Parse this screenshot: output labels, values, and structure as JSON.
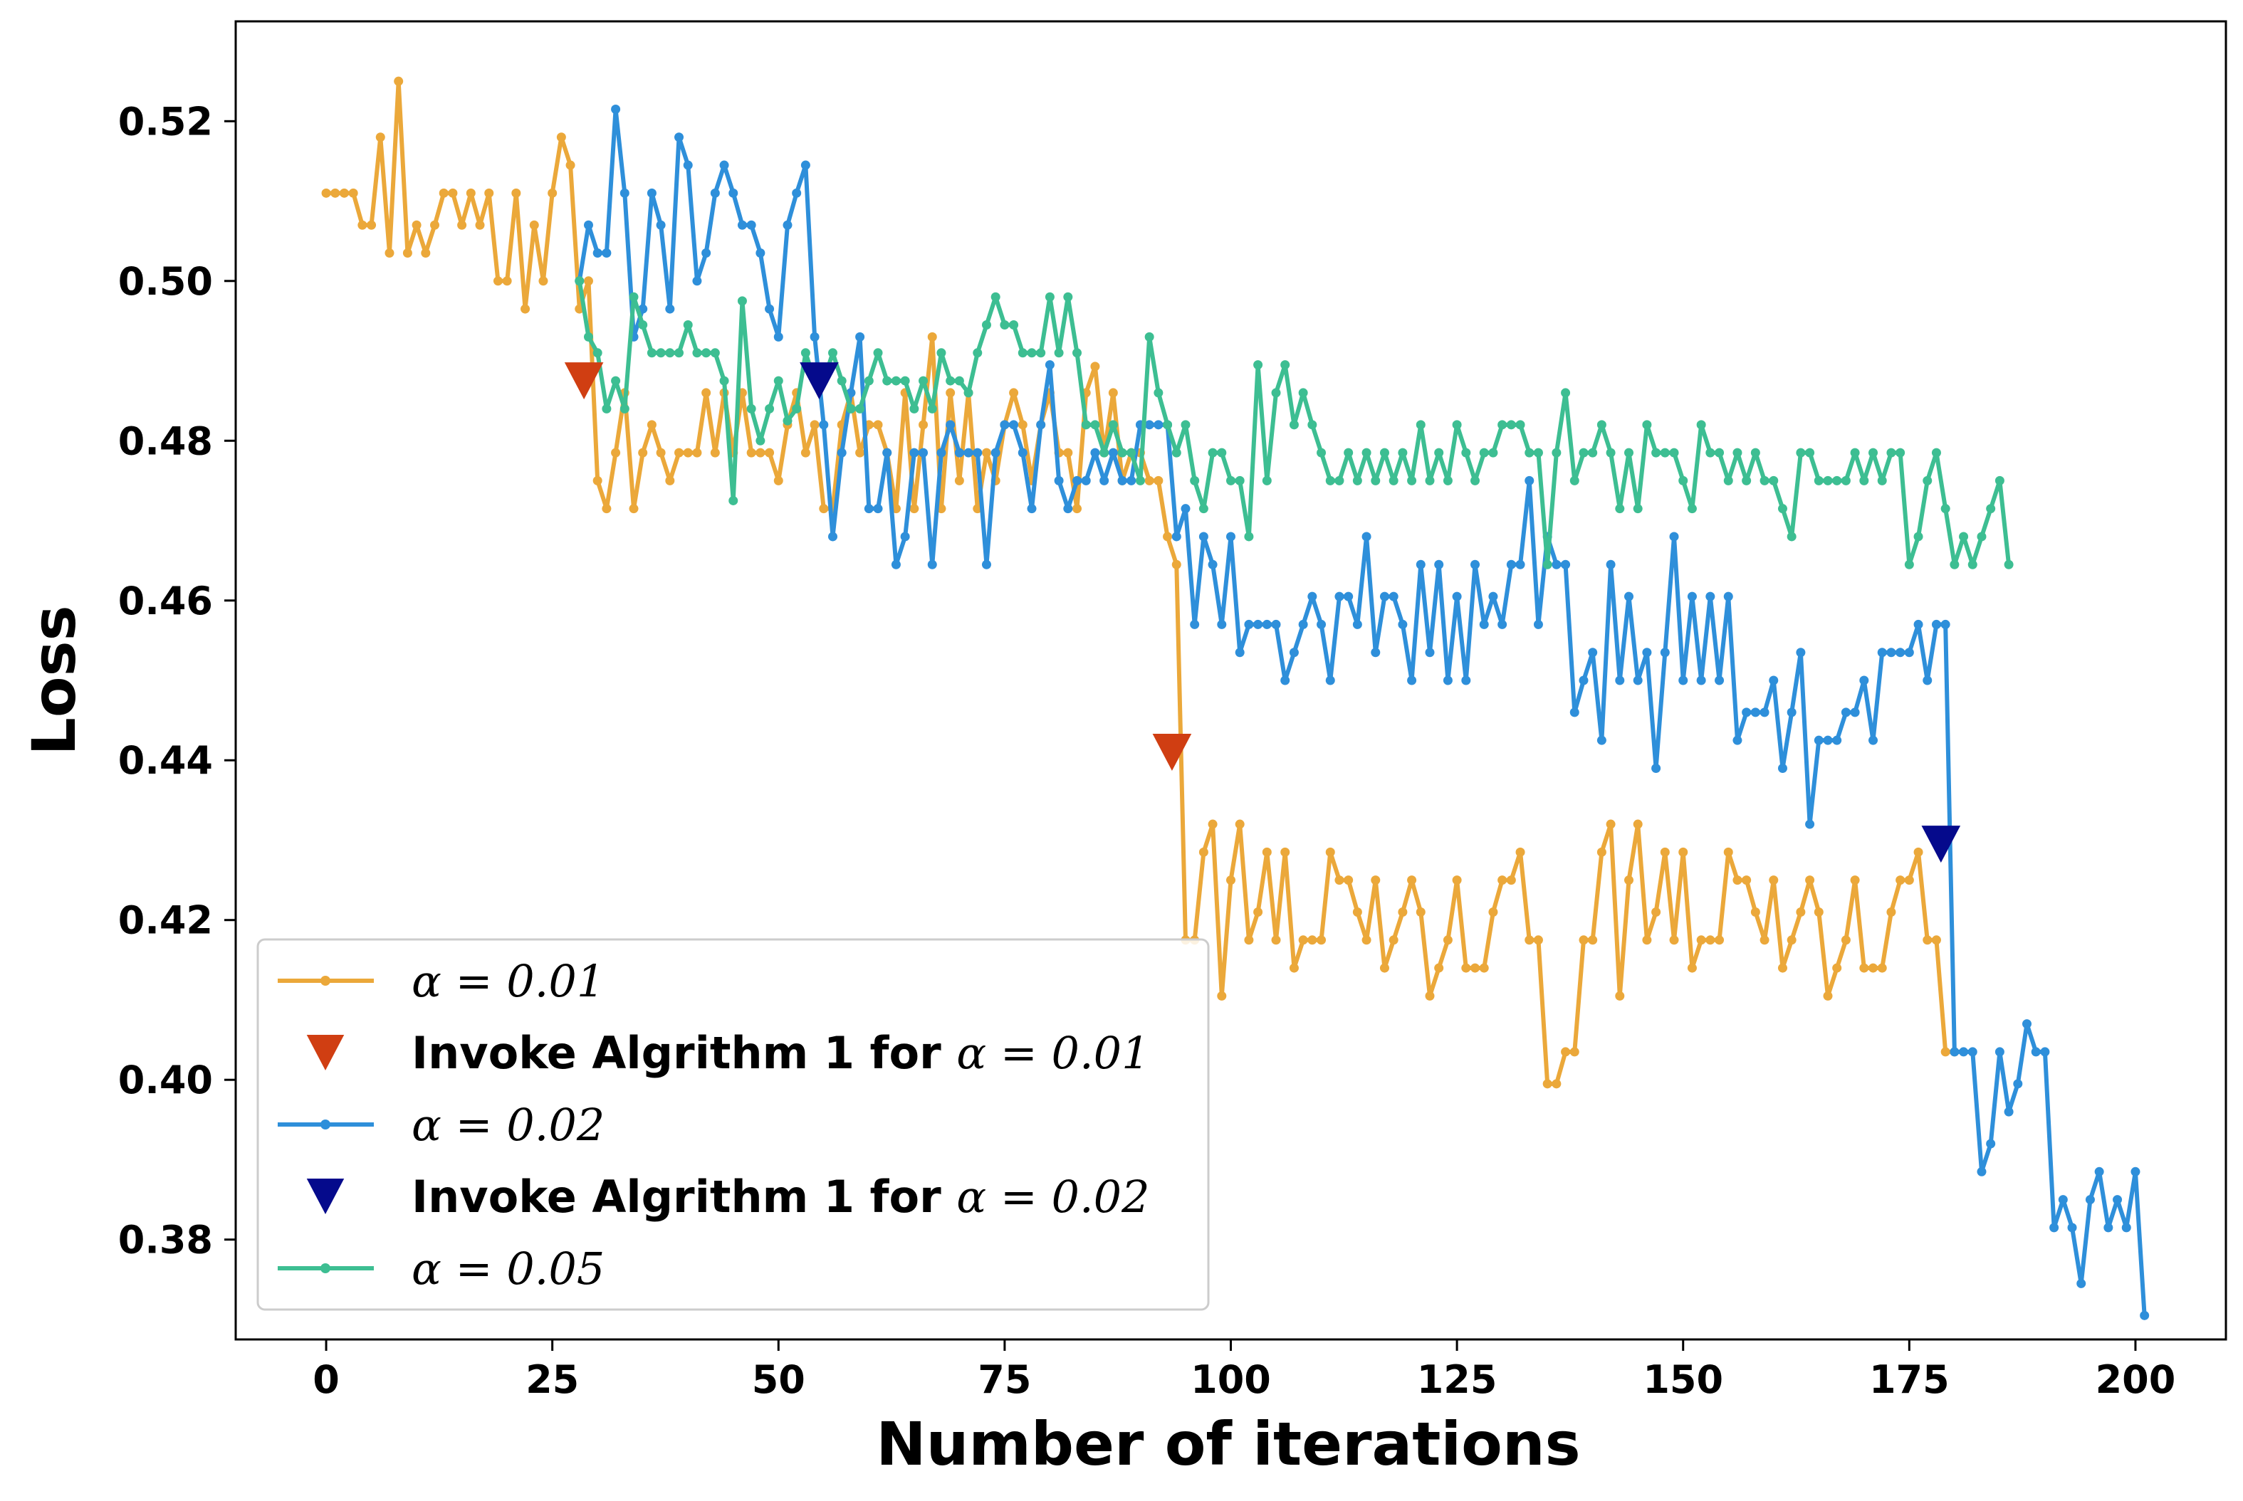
{
  "chart_data": {
    "type": "line",
    "title": "",
    "xlabel": "Number of iterations",
    "ylabel": "Loss",
    "xlim": [
      -10,
      210
    ],
    "ylim": [
      0.3675,
      0.5325
    ],
    "xticks": [
      0,
      25,
      50,
      75,
      100,
      125,
      150,
      175,
      200
    ],
    "xtick_labels": [
      "0",
      "25",
      "50",
      "75",
      "100",
      "125",
      "150",
      "175",
      "200"
    ],
    "yticks": [
      0.38,
      0.4,
      0.42,
      0.44,
      0.46,
      0.48,
      0.5,
      0.52
    ],
    "ytick_labels": [
      "0.38",
      "0.40",
      "0.42",
      "0.44",
      "0.46",
      "0.48",
      "0.50",
      "0.52"
    ],
    "series": [
      {
        "name": "α = 0.01",
        "color": "#EBA83A",
        "x_start": 0,
        "values": [
          0.511,
          0.511,
          0.511,
          0.511,
          0.507,
          0.507,
          0.518,
          0.5035,
          0.525,
          0.5035,
          0.507,
          0.5035,
          0.507,
          0.511,
          0.511,
          0.507,
          0.511,
          0.507,
          0.511,
          0.5,
          0.5,
          0.511,
          0.4965,
          0.507,
          0.5,
          0.511,
          0.518,
          0.5145,
          0.4965,
          0.5,
          0.475,
          0.4715,
          0.4785,
          0.486,
          0.4715,
          0.4785,
          0.482,
          0.4785,
          0.475,
          0.4785,
          0.4785,
          0.4785,
          0.486,
          0.4785,
          0.486,
          0.4785,
          0.486,
          0.4785,
          0.4785,
          0.4785,
          0.475,
          0.482,
          0.486,
          0.4785,
          0.482,
          0.4715,
          0.4715,
          0.482,
          0.486,
          0.4785,
          0.482,
          0.482,
          0.4785,
          0.4715,
          0.486,
          0.4715,
          0.482,
          0.493,
          0.4715,
          0.486,
          0.475,
          0.486,
          0.4715,
          0.4785,
          0.475,
          0.482,
          0.486,
          0.482,
          0.475,
          0.482,
          0.486,
          0.4785,
          0.4785,
          0.4715,
          0.486,
          0.4893,
          0.4785,
          0.486,
          0.475,
          0.4785,
          0.4785,
          0.475,
          0.475,
          0.468,
          0.4645,
          0.4175,
          0.4175,
          0.4285,
          0.432,
          0.4105,
          0.425,
          0.432,
          0.4175,
          0.421,
          0.4285,
          0.4175,
          0.4285,
          0.414,
          0.4175,
          0.4175,
          0.4175,
          0.4285,
          0.425,
          0.425,
          0.421,
          0.4175,
          0.425,
          0.414,
          0.4175,
          0.421,
          0.425,
          0.421,
          0.4105,
          0.414,
          0.4175,
          0.425,
          0.414,
          0.414,
          0.414,
          0.421,
          0.425,
          0.425,
          0.4285,
          0.4175,
          0.4175,
          0.3995,
          0.3995,
          0.4035,
          0.4035,
          0.4175,
          0.4175,
          0.4285,
          0.432,
          0.4105,
          0.425,
          0.432,
          0.4175,
          0.421,
          0.4285,
          0.4175,
          0.4285,
          0.414,
          0.4175,
          0.4175,
          0.4175,
          0.4285,
          0.425,
          0.425,
          0.421,
          0.4175,
          0.425,
          0.414,
          0.4175,
          0.421,
          0.425,
          0.421,
          0.4105,
          0.414,
          0.4175,
          0.425,
          0.414,
          0.414,
          0.414,
          0.421,
          0.425,
          0.425,
          0.4285,
          0.4175,
          0.4175,
          0.4035,
          0.4035
        ]
      },
      {
        "name": "α = 0.02",
        "color": "#2E8FDA",
        "x_start": 28,
        "values": [
          0.5,
          0.507,
          0.5035,
          0.5035,
          0.5215,
          0.511,
          0.493,
          0.4965,
          0.511,
          0.507,
          0.4965,
          0.518,
          0.5145,
          0.5,
          0.5035,
          0.511,
          0.5145,
          0.511,
          0.507,
          0.507,
          0.5035,
          0.4965,
          0.493,
          0.507,
          0.511,
          0.5145,
          0.493,
          0.482,
          0.468,
          0.4785,
          0.486,
          0.493,
          0.4715,
          0.4715,
          0.4785,
          0.4645,
          0.468,
          0.4785,
          0.4785,
          0.4645,
          0.4785,
          0.482,
          0.4785,
          0.4785,
          0.4785,
          0.4645,
          0.4785,
          0.482,
          0.482,
          0.4785,
          0.4715,
          0.482,
          0.4895,
          0.475,
          0.4715,
          0.475,
          0.475,
          0.4785,
          0.475,
          0.4785,
          0.475,
          0.475,
          0.482,
          0.482,
          0.482,
          0.482,
          0.468,
          0.4715,
          0.457,
          0.468,
          0.4645,
          0.457,
          0.468,
          0.4535,
          0.457,
          0.457,
          0.457,
          0.457,
          0.45,
          0.4535,
          0.457,
          0.4605,
          0.457,
          0.45,
          0.4605,
          0.4605,
          0.457,
          0.468,
          0.4535,
          0.4605,
          0.4605,
          0.457,
          0.45,
          0.4645,
          0.4535,
          0.4645,
          0.45,
          0.4605,
          0.45,
          0.4645,
          0.457,
          0.4605,
          0.457,
          0.4645,
          0.4645,
          0.475,
          0.457,
          0.468,
          0.4645,
          0.4645,
          0.446,
          0.45,
          0.4535,
          0.4425,
          0.4645,
          0.45,
          0.4605,
          0.45,
          0.4535,
          0.439,
          0.4535,
          0.468,
          0.45,
          0.4605,
          0.45,
          0.4605,
          0.45,
          0.4605,
          0.4425,
          0.446,
          0.446,
          0.446,
          0.45,
          0.439,
          0.446,
          0.4535,
          0.432,
          0.4425,
          0.4425,
          0.4425,
          0.446,
          0.446,
          0.45,
          0.4425,
          0.4535,
          0.4535,
          0.4535,
          0.4535,
          0.457,
          0.45,
          0.457,
          0.457,
          0.4035,
          0.4035,
          0.4035,
          0.3885,
          0.392,
          0.4035,
          0.396,
          0.3995,
          0.407,
          0.4035,
          0.4035,
          0.3815,
          0.385,
          0.3815,
          0.3745,
          0.385,
          0.3885,
          0.3815,
          0.385,
          0.3815,
          0.3885,
          0.3705
        ]
      },
      {
        "name": "α = 0.05",
        "color": "#3DBE92",
        "x_start": 28,
        "values": [
          0.5,
          0.493,
          0.491,
          0.484,
          0.4875,
          0.484,
          0.498,
          0.4945,
          0.491,
          0.491,
          0.491,
          0.491,
          0.4945,
          0.491,
          0.491,
          0.491,
          0.4875,
          0.4725,
          0.4975,
          0.484,
          0.48,
          0.484,
          0.4875,
          0.4825,
          0.484,
          0.491,
          0.4875,
          0.4875,
          0.491,
          0.4875,
          0.484,
          0.484,
          0.4875,
          0.491,
          0.4875,
          0.4875,
          0.4875,
          0.484,
          0.4875,
          0.484,
          0.491,
          0.4875,
          0.4875,
          0.486,
          0.491,
          0.4945,
          0.498,
          0.4945,
          0.4945,
          0.491,
          0.491,
          0.491,
          0.498,
          0.491,
          0.498,
          0.491,
          0.482,
          0.482,
          0.4785,
          0.482,
          0.4785,
          0.4785,
          0.475,
          0.493,
          0.486,
          0.482,
          0.4785,
          0.482,
          0.475,
          0.4715,
          0.4785,
          0.4785,
          0.475,
          0.475,
          0.468,
          0.4895,
          0.475,
          0.486,
          0.4895,
          0.482,
          0.486,
          0.482,
          0.4785,
          0.475,
          0.475,
          0.4785,
          0.475,
          0.4785,
          0.475,
          0.4785,
          0.475,
          0.4785,
          0.475,
          0.482,
          0.475,
          0.4785,
          0.475,
          0.482,
          0.4785,
          0.475,
          0.4785,
          0.4785,
          0.482,
          0.482,
          0.482,
          0.4785,
          0.4785,
          0.4645,
          0.4785,
          0.486,
          0.475,
          0.4785,
          0.4785,
          0.482,
          0.4785,
          0.4715,
          0.4785,
          0.4715,
          0.482,
          0.4785,
          0.4785,
          0.4785,
          0.475,
          0.4715,
          0.482,
          0.4785,
          0.4785,
          0.475,
          0.4785,
          0.475,
          0.4785,
          0.475,
          0.475,
          0.4715,
          0.468,
          0.4785,
          0.4785,
          0.475,
          0.475,
          0.475,
          0.475,
          0.4785,
          0.475,
          0.4785,
          0.475,
          0.4785,
          0.4785,
          0.4645,
          0.468,
          0.475,
          0.4785,
          0.4715,
          0.4645,
          0.468,
          0.4645,
          0.468,
          0.4715,
          0.475,
          0.4645
        ]
      }
    ],
    "markers": [
      {
        "series": "Invoke Algrithm 1 for α = 0.01",
        "color": "#D03E12",
        "points": [
          [
            28.5,
            0.4875
          ],
          [
            93.5,
            0.441
          ]
        ]
      },
      {
        "series": "Invoke Algrithm 1 for α = 0.02",
        "color": "#050A8C",
        "points": [
          [
            54.5,
            0.4875
          ],
          [
            178.5,
            0.4295
          ]
        ]
      }
    ],
    "legend": {
      "position": "lower-left",
      "entries": [
        {
          "kind": "line",
          "color": "#EBA83A",
          "bold": "",
          "math": "α = 0.01"
        },
        {
          "kind": "triangle",
          "color": "#D03E12",
          "bold": "Invoke Algrithm 1 for ",
          "math": "α = 0.01"
        },
        {
          "kind": "line",
          "color": "#2E8FDA",
          "bold": "",
          "math": "α = 0.02"
        },
        {
          "kind": "triangle",
          "color": "#050A8C",
          "bold": "Invoke Algrithm 1 for ",
          "math": "α = 0.02"
        },
        {
          "kind": "line",
          "color": "#3DBE92",
          "bold": "",
          "math": "α = 0.05"
        }
      ]
    }
  }
}
